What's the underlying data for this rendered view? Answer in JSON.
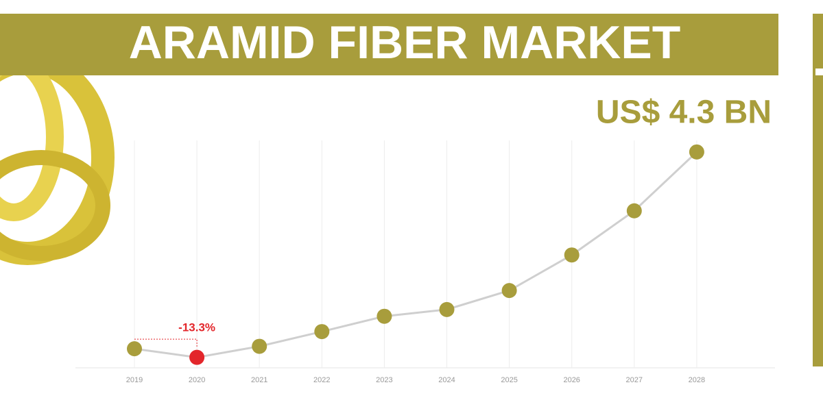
{
  "chart_data": {
    "type": "line",
    "title": "ARAMID FIBER MARKET",
    "categories": [
      "2019",
      "2020",
      "2021",
      "2022",
      "2023",
      "2024",
      "2025",
      "2026",
      "2027",
      "2028"
    ],
    "values": [
      1.09,
      0.95,
      1.13,
      1.37,
      1.62,
      1.73,
      2.04,
      2.62,
      3.34,
      4.3
    ],
    "value_labels": [
      null,
      null,
      null,
      null,
      null,
      null,
      null,
      null,
      null,
      "US$ 4.3 BN"
    ],
    "annotation": "-13.3%",
    "color": "#a89d3c",
    "line_color": "#cfcfcf",
    "point_colors": [
      "#a89d3c",
      "#e3262b",
      "#a89d3c",
      "#a89d3c",
      "#a89d3c",
      "#a89d3c",
      "#a89d3c",
      "#a89d3c",
      "#a89d3c",
      "#a89d3c"
    ],
    "grid": true
  }
}
